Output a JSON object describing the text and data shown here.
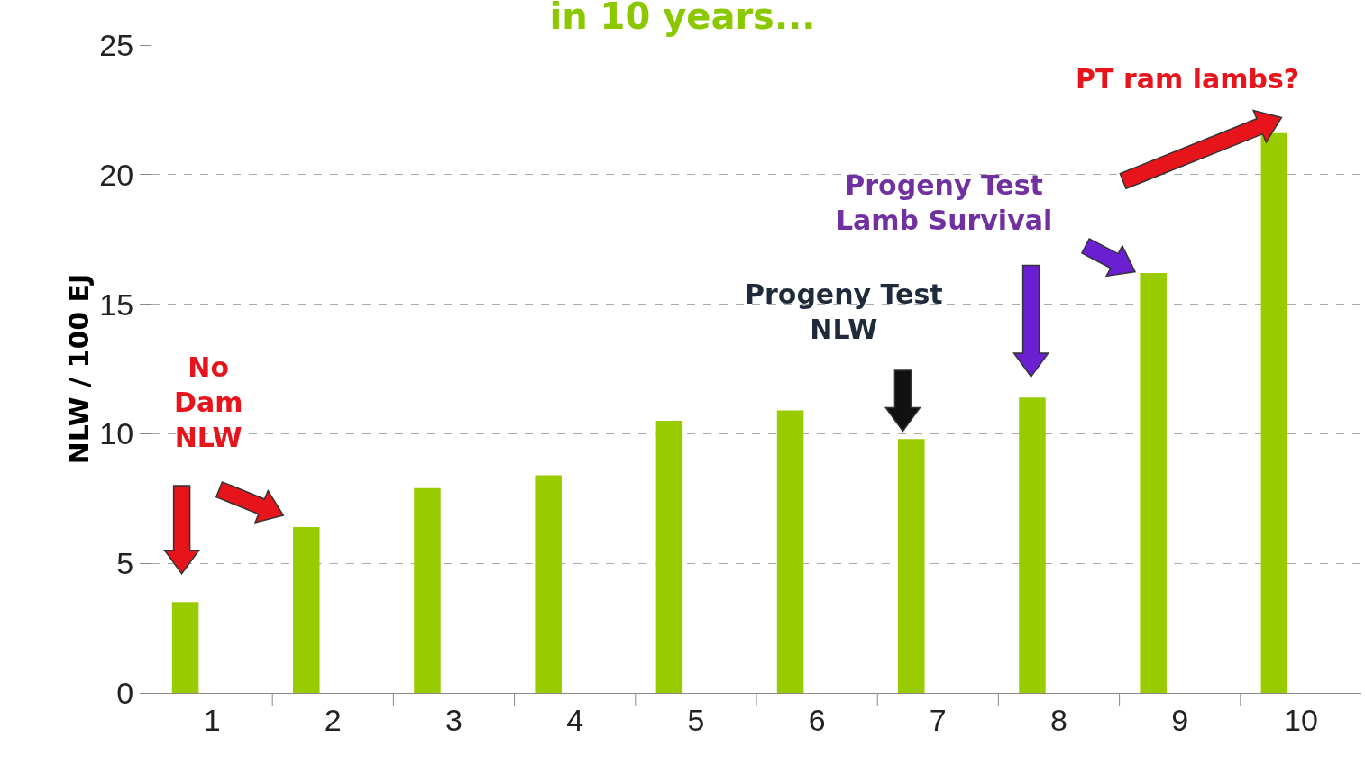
{
  "chart_data": {
    "type": "bar",
    "title": "in 10 years...",
    "categories": [
      "1",
      "2",
      "3",
      "4",
      "5",
      "6",
      "7",
      "8",
      "9",
      "10"
    ],
    "values": [
      3.5,
      6.4,
      7.9,
      8.4,
      10.5,
      10.9,
      9.8,
      11.4,
      16.2,
      21.6
    ],
    "color": "#99cc00",
    "ylabel": "NLW / 100 EJ",
    "ylim": [
      0,
      25
    ],
    "yticks": [
      0,
      5,
      10,
      15,
      20,
      25
    ],
    "grid": "y",
    "annotations": [
      "No\nDam\nNLW",
      "Progeny Test\nNLW",
      "Progeny Test\nLamb Survival",
      "PT ram lambs?"
    ]
  }
}
